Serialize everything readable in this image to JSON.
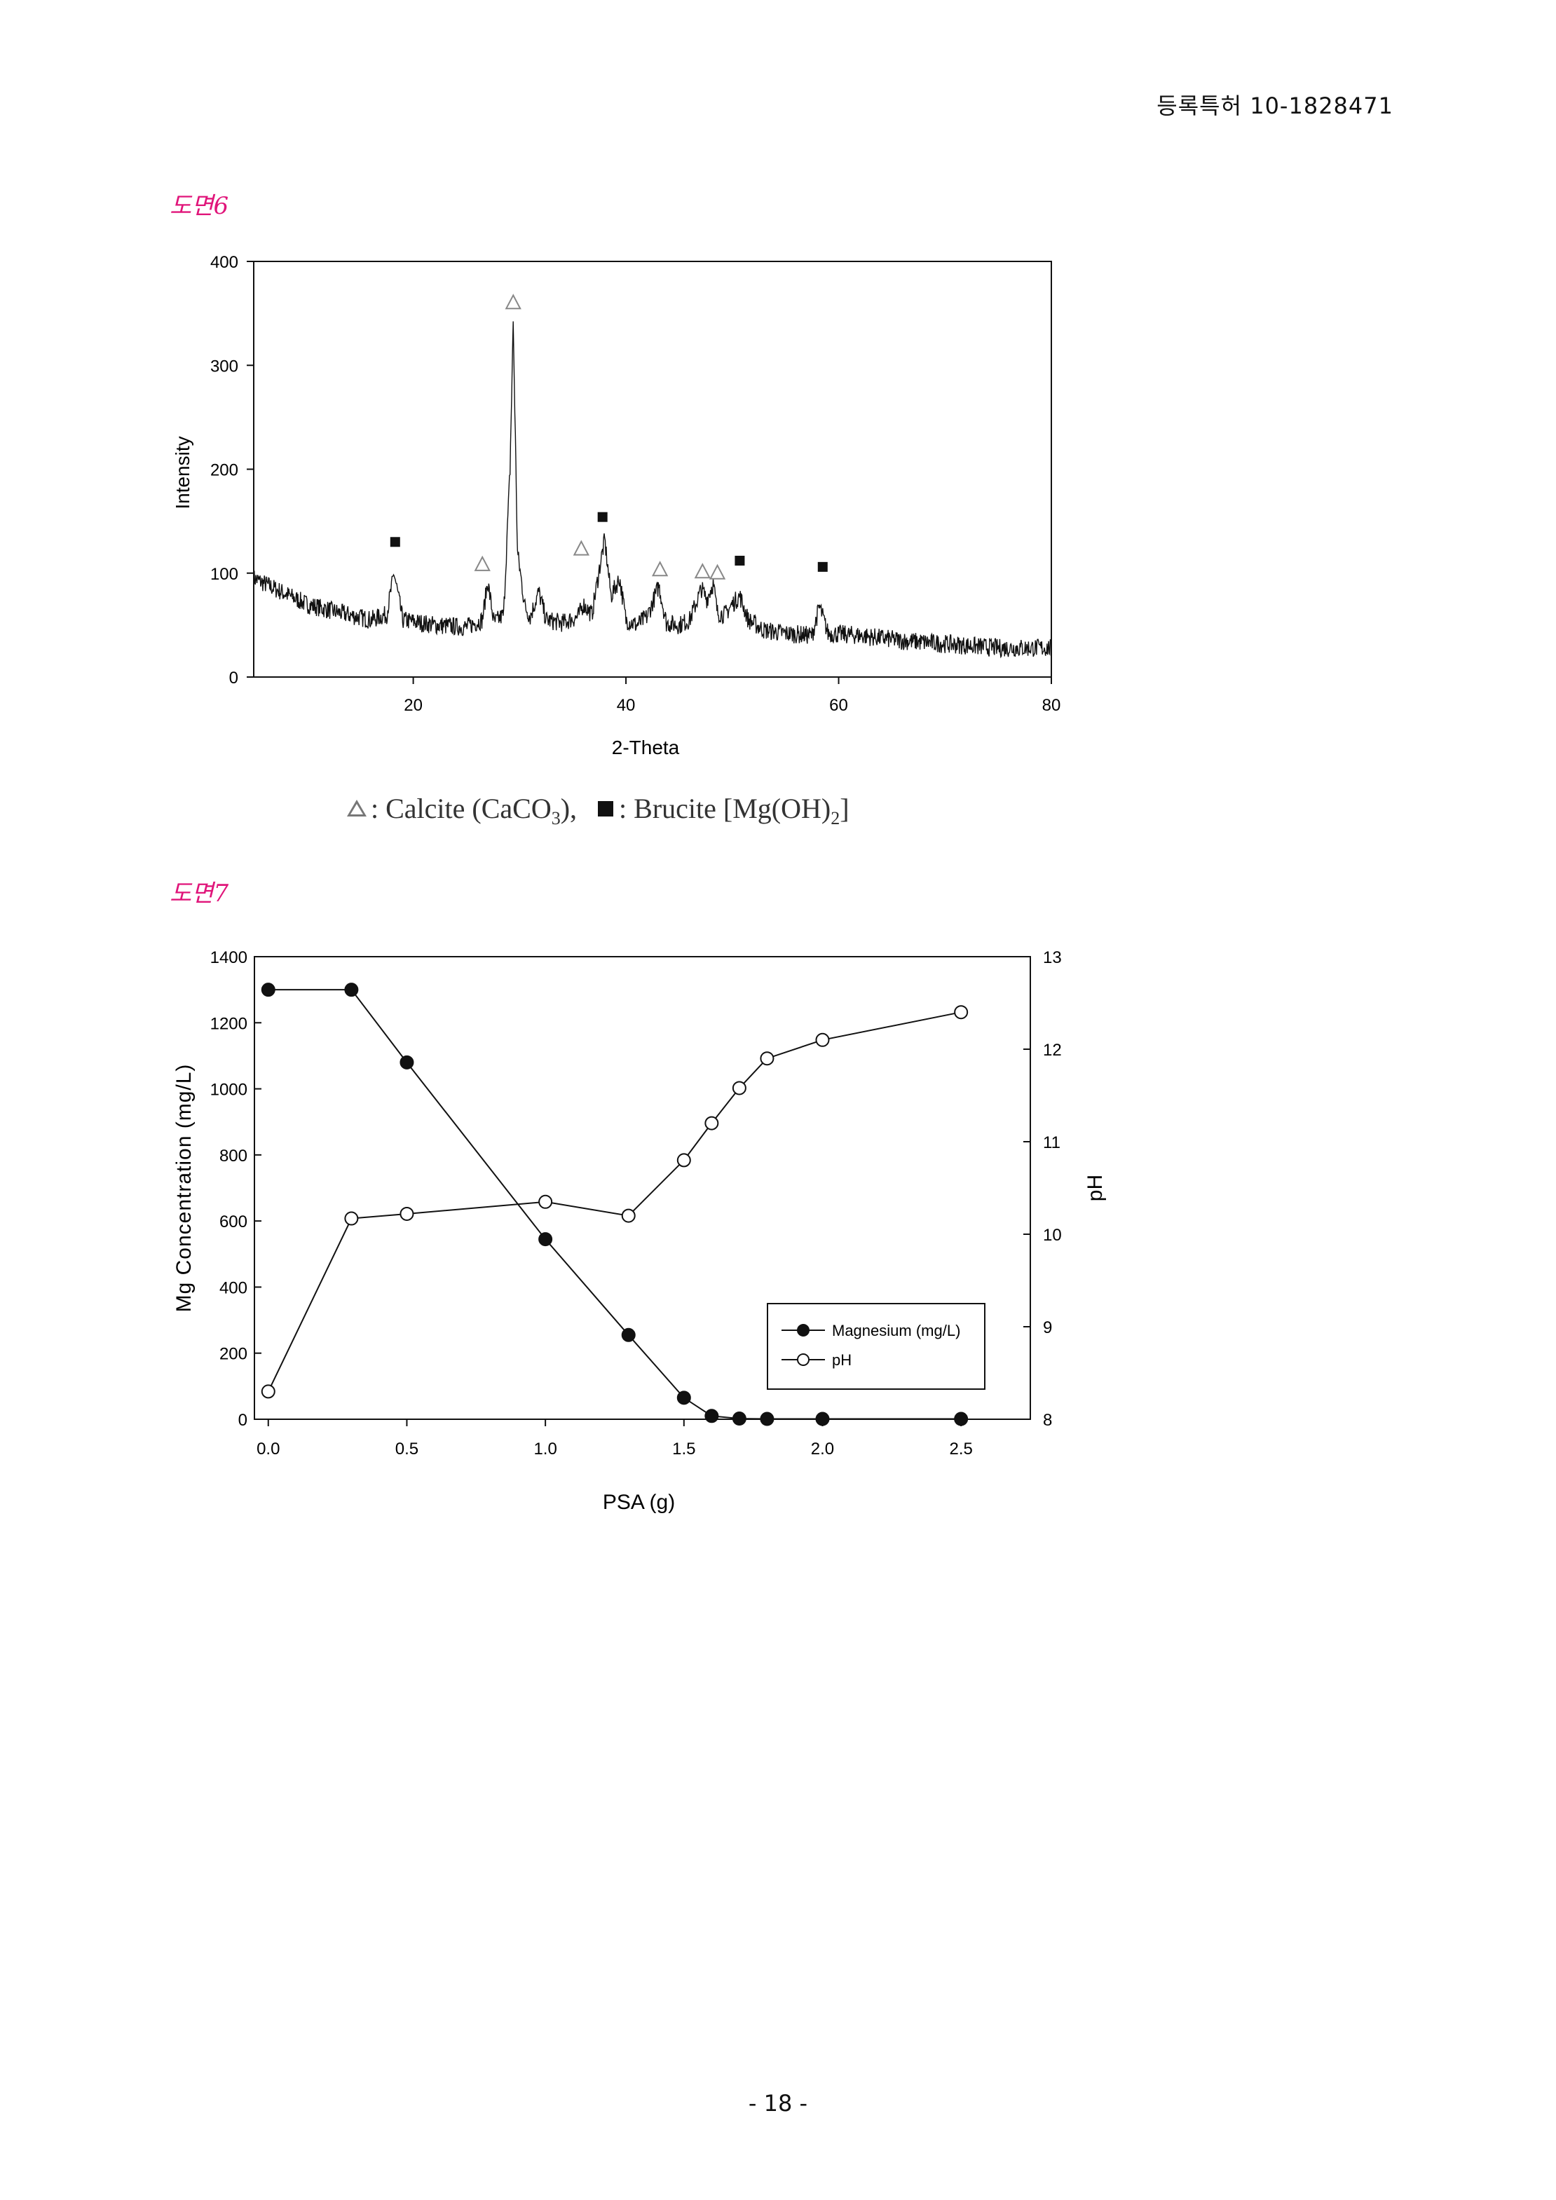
{
  "header": {
    "patent_id": "등록특허 10-1828471"
  },
  "figure6": {
    "label": "도면6",
    "legend": {
      "calcite_text": ": Calcite (CaCO",
      "calcite_sub": "3",
      "calcite_tail": "),",
      "brucite_text": ": Brucite [Mg(OH)",
      "brucite_sub": "2",
      "brucite_tail": "]"
    }
  },
  "figure7": {
    "label": "도면7"
  },
  "footer": {
    "page_number": "- 18 -"
  },
  "chart_data": [
    {
      "type": "line",
      "xlabel": "2-Theta",
      "ylabel": "Intensity",
      "xlim": [
        5,
        80
      ],
      "ylim": [
        0,
        400
      ],
      "xticks": [
        20,
        40,
        60,
        80
      ],
      "yticks": [
        0,
        100,
        200,
        300,
        400
      ],
      "series": [
        {
          "x": [
            5,
            7,
            10,
            13,
            16,
            17.5,
            18.2,
            19,
            22,
            25,
            26.5,
            27,
            27.6,
            28.5,
            29.1,
            29.4,
            29.8,
            30.5,
            31,
            31.8,
            32.5,
            34,
            35.5,
            36,
            36.8,
            37.6,
            38,
            38.6,
            39.4,
            40,
            41,
            42,
            43.1,
            43.8,
            45,
            46,
            47.1,
            47.6,
            48.2,
            48.6,
            49.3,
            50,
            50.7,
            51.5,
            53,
            55,
            57.5,
            58.2,
            59,
            62,
            66,
            70,
            75,
            80
          ],
          "values": [
            95,
            85,
            70,
            62,
            55,
            60,
            100,
            55,
            50,
            48,
            55,
            92,
            52,
            60,
            200,
            342,
            120,
            68,
            58,
            82,
            55,
            52,
            58,
            70,
            60,
            110,
            132,
            78,
            95,
            55,
            50,
            58,
            88,
            52,
            50,
            55,
            85,
            75,
            90,
            62,
            60,
            70,
            78,
            55,
            45,
            42,
            40,
            68,
            42,
            40,
            35,
            32,
            28,
            28
          ]
        }
      ],
      "markers": [
        {
          "symbol": "triangle",
          "phase": "Calcite",
          "x": 29.4,
          "y": 360
        },
        {
          "symbol": "triangle",
          "phase": "Calcite",
          "x": 26.5,
          "y": 108
        },
        {
          "symbol": "triangle",
          "phase": "Calcite",
          "x": 35.8,
          "y": 123
        },
        {
          "symbol": "triangle",
          "phase": "Calcite",
          "x": 43.2,
          "y": 103
        },
        {
          "symbol": "triangle",
          "phase": "Calcite",
          "x": 47.2,
          "y": 101
        },
        {
          "symbol": "triangle",
          "phase": "Calcite",
          "x": 48.6,
          "y": 100
        },
        {
          "symbol": "square",
          "phase": "Brucite",
          "x": 18.3,
          "y": 130
        },
        {
          "symbol": "square",
          "phase": "Brucite",
          "x": 37.8,
          "y": 154
        },
        {
          "symbol": "square",
          "phase": "Brucite",
          "x": 50.7,
          "y": 112
        },
        {
          "symbol": "square",
          "phase": "Brucite",
          "x": 58.5,
          "y": 106
        }
      ]
    },
    {
      "type": "line",
      "xlabel": "PSA (g)",
      "ylabel": "Mg Concentration (mg/L)",
      "y2label": "pH",
      "xlim": [
        -0.05,
        2.75
      ],
      "ylim": [
        0,
        1400
      ],
      "y2lim": [
        8,
        13
      ],
      "xticks": [
        "0.0",
        "0.5",
        "1.0",
        "1.5",
        "2.0",
        "2.5"
      ],
      "xtick_values": [
        0,
        0.5,
        1.0,
        1.5,
        2.0,
        2.5
      ],
      "yticks": [
        0,
        200,
        400,
        600,
        800,
        1000,
        1200,
        1400
      ],
      "y2ticks": [
        8,
        9,
        10,
        11,
        12,
        13
      ],
      "legend_position": "lower-right",
      "series": [
        {
          "name": "Magnesium (mg/L)",
          "axis": "left",
          "marker": "filled-circle",
          "x": [
            0,
            0.3,
            0.5,
            1.0,
            1.3,
            1.5,
            1.6,
            1.7,
            1.8,
            2.0,
            2.5
          ],
          "values": [
            1300,
            1300,
            1080,
            545,
            255,
            65,
            10,
            2,
            1,
            1,
            1
          ]
        },
        {
          "name": "pH",
          "axis": "right",
          "marker": "open-circle",
          "x": [
            0,
            0.3,
            0.5,
            1.0,
            1.3,
            1.5,
            1.6,
            1.7,
            1.8,
            2.0,
            2.5
          ],
          "values": [
            8.3,
            10.17,
            10.22,
            10.35,
            10.2,
            10.8,
            11.2,
            11.58,
            11.9,
            12.1,
            12.4
          ]
        }
      ]
    }
  ]
}
